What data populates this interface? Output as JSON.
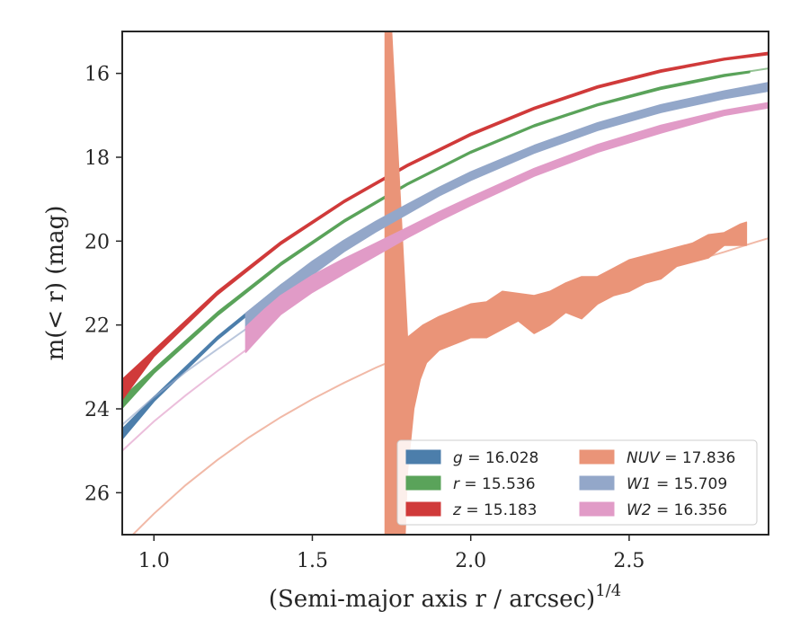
{
  "chart_data": {
    "type": "line",
    "xlabel": "(Semi-major axis r / arcsec)",
    "xlabel_exponent": "1/4",
    "ylabel": "m(< r) (mag)",
    "xlim": [
      0.9,
      2.94
    ],
    "ylim": [
      27.0,
      15.0
    ],
    "y_inverted": true,
    "grid": false,
    "legend_position": "lower-right",
    "legend_columns": 2,
    "xticks": [
      1.0,
      1.5,
      2.0,
      2.5
    ],
    "xtick_labels": [
      "1.0",
      "1.5",
      "2.0",
      "2.5"
    ],
    "yticks": [
      16,
      18,
      20,
      22,
      24,
      26
    ],
    "ytick_labels": [
      "16",
      "18",
      "20",
      "22",
      "24",
      "26"
    ],
    "series": [
      {
        "name": "g = 16.028",
        "band": "g",
        "value": "16.028",
        "color": "#4c7eab",
        "lower": [
          [
            0.9,
            24.72
          ],
          [
            1.0,
            23.82
          ],
          [
            1.2,
            22.35
          ],
          [
            1.4,
            21.12
          ],
          [
            1.6,
            20.05
          ],
          [
            1.8,
            19.18
          ],
          [
            2.0,
            18.42
          ],
          [
            2.2,
            17.78
          ],
          [
            2.4,
            17.27
          ],
          [
            2.6,
            16.88
          ],
          [
            2.78,
            16.6
          ],
          [
            2.86,
            16.5
          ]
        ],
        "upper": [
          [
            0.9,
            24.48
          ],
          [
            1.0,
            23.72
          ],
          [
            1.2,
            22.28
          ],
          [
            1.4,
            21.05
          ],
          [
            1.6,
            20.0
          ],
          [
            1.8,
            19.13
          ],
          [
            2.0,
            18.38
          ],
          [
            2.2,
            17.74
          ],
          [
            2.4,
            17.22
          ],
          [
            2.6,
            16.82
          ],
          [
            2.78,
            16.55
          ],
          [
            2.86,
            16.46
          ]
        ],
        "faint": []
      },
      {
        "name": "r = 15.536",
        "band": "r",
        "value": "15.536",
        "color": "#5aa35a",
        "lower": [
          [
            0.9,
            23.98
          ],
          [
            1.0,
            23.15
          ],
          [
            1.2,
            21.78
          ],
          [
            1.4,
            20.58
          ],
          [
            1.6,
            19.55
          ],
          [
            1.8,
            18.66
          ],
          [
            2.0,
            17.9
          ],
          [
            2.2,
            17.27
          ],
          [
            2.4,
            16.77
          ],
          [
            2.6,
            16.38
          ],
          [
            2.8,
            16.07
          ],
          [
            2.88,
            15.98
          ]
        ],
        "upper": [
          [
            0.9,
            23.74
          ],
          [
            1.0,
            23.05
          ],
          [
            1.2,
            21.7
          ],
          [
            1.4,
            20.52
          ],
          [
            1.6,
            19.5
          ],
          [
            1.8,
            18.62
          ],
          [
            2.0,
            17.86
          ],
          [
            2.2,
            17.23
          ],
          [
            2.4,
            16.73
          ],
          [
            2.6,
            16.33
          ],
          [
            2.8,
            16.03
          ],
          [
            2.88,
            15.95
          ]
        ],
        "faint": [
          [
            2.88,
            15.95
          ],
          [
            2.94,
            15.88
          ]
        ]
      },
      {
        "name": "z = 15.183",
        "band": "z",
        "value": "15.183",
        "color": "#d03a3a",
        "lower": [
          [
            0.9,
            23.78
          ],
          [
            1.0,
            22.75
          ],
          [
            1.2,
            21.28
          ],
          [
            1.4,
            20.08
          ],
          [
            1.6,
            19.08
          ],
          [
            1.8,
            18.22
          ],
          [
            2.0,
            17.48
          ],
          [
            2.2,
            16.86
          ],
          [
            2.4,
            16.35
          ],
          [
            2.6,
            15.97
          ],
          [
            2.8,
            15.68
          ],
          [
            2.94,
            15.55
          ]
        ],
        "upper": [
          [
            0.9,
            23.3
          ],
          [
            1.0,
            22.6
          ],
          [
            1.2,
            21.2
          ],
          [
            1.4,
            20.02
          ],
          [
            1.6,
            19.03
          ],
          [
            1.8,
            18.17
          ],
          [
            2.0,
            17.43
          ],
          [
            2.2,
            16.81
          ],
          [
            2.4,
            16.3
          ],
          [
            2.6,
            15.92
          ],
          [
            2.8,
            15.64
          ],
          [
            2.94,
            15.5
          ]
        ],
        "faint": []
      },
      {
        "name": "NUV = 17.836",
        "band": "NUV",
        "value": "17.836",
        "color": "#ea9478",
        "lower": [
          [
            1.73,
            27.5
          ],
          [
            1.79,
            27.5
          ],
          [
            1.8,
            25.5
          ],
          [
            1.82,
            24.0
          ],
          [
            1.84,
            23.3
          ],
          [
            1.86,
            22.9
          ],
          [
            1.9,
            22.6
          ],
          [
            1.95,
            22.45
          ],
          [
            2.0,
            22.3
          ],
          [
            2.05,
            22.3
          ],
          [
            2.1,
            22.1
          ],
          [
            2.15,
            21.9
          ],
          [
            2.2,
            22.2
          ],
          [
            2.25,
            22.0
          ],
          [
            2.3,
            21.7
          ],
          [
            2.35,
            21.85
          ],
          [
            2.4,
            21.5
          ],
          [
            2.45,
            21.3
          ],
          [
            2.5,
            21.2
          ],
          [
            2.55,
            21.0
          ],
          [
            2.6,
            20.9
          ],
          [
            2.65,
            20.6
          ],
          [
            2.7,
            20.5
          ],
          [
            2.75,
            20.4
          ],
          [
            2.8,
            20.1
          ],
          [
            2.85,
            20.1
          ],
          [
            2.87,
            20.1
          ]
        ],
        "upper": [
          [
            1.73,
            15.0
          ],
          [
            1.75,
            15.0
          ],
          [
            1.8,
            22.3
          ],
          [
            1.85,
            22.0
          ],
          [
            1.9,
            21.8
          ],
          [
            1.95,
            21.65
          ],
          [
            2.0,
            21.5
          ],
          [
            2.05,
            21.45
          ],
          [
            2.1,
            21.2
          ],
          [
            2.15,
            21.25
          ],
          [
            2.2,
            21.3
          ],
          [
            2.25,
            21.2
          ],
          [
            2.3,
            21.0
          ],
          [
            2.35,
            20.85
          ],
          [
            2.4,
            20.85
          ],
          [
            2.45,
            20.65
          ],
          [
            2.5,
            20.45
          ],
          [
            2.55,
            20.35
          ],
          [
            2.6,
            20.25
          ],
          [
            2.65,
            20.15
          ],
          [
            2.7,
            20.05
          ],
          [
            2.75,
            19.85
          ],
          [
            2.8,
            19.8
          ],
          [
            2.85,
            19.6
          ],
          [
            2.87,
            19.55
          ]
        ],
        "faint": [
          [
            0.9,
            27.25
          ],
          [
            1.0,
            26.5
          ],
          [
            1.1,
            25.82
          ],
          [
            1.2,
            25.22
          ],
          [
            1.3,
            24.68
          ],
          [
            1.4,
            24.2
          ],
          [
            1.5,
            23.77
          ],
          [
            1.6,
            23.38
          ],
          [
            1.7,
            23.02
          ],
          [
            1.8,
            22.7
          ],
          [
            1.9,
            22.4
          ],
          [
            2.0,
            22.12
          ],
          [
            2.1,
            21.85
          ],
          [
            2.2,
            21.6
          ],
          [
            2.3,
            21.37
          ],
          [
            2.4,
            21.14
          ],
          [
            2.5,
            20.92
          ],
          [
            2.6,
            20.7
          ],
          [
            2.7,
            20.48
          ],
          [
            2.8,
            20.26
          ],
          [
            2.9,
            20.02
          ],
          [
            2.94,
            19.93
          ]
        ]
      },
      {
        "name": "W1 = 15.709",
        "band": "W1",
        "value": "15.709",
        "color": "#93a7c9",
        "lower": [
          [
            1.29,
            22.1
          ],
          [
            1.35,
            21.72
          ],
          [
            1.4,
            21.4
          ],
          [
            1.5,
            20.8
          ],
          [
            1.6,
            20.25
          ],
          [
            1.7,
            19.78
          ],
          [
            1.8,
            19.35
          ],
          [
            1.9,
            18.92
          ],
          [
            2.0,
            18.55
          ],
          [
            2.2,
            17.9
          ],
          [
            2.4,
            17.36
          ],
          [
            2.6,
            16.93
          ],
          [
            2.8,
            16.6
          ],
          [
            2.94,
            16.42
          ]
        ],
        "upper": [
          [
            1.29,
            21.72
          ],
          [
            1.35,
            21.36
          ],
          [
            1.4,
            21.05
          ],
          [
            1.5,
            20.48
          ],
          [
            1.6,
            19.98
          ],
          [
            1.7,
            19.53
          ],
          [
            1.8,
            19.12
          ],
          [
            1.9,
            18.72
          ],
          [
            2.0,
            18.35
          ],
          [
            2.2,
            17.72
          ],
          [
            2.4,
            17.18
          ],
          [
            2.6,
            16.75
          ],
          [
            2.8,
            16.42
          ],
          [
            2.94,
            16.22
          ]
        ],
        "faint": [
          [
            0.9,
            24.38
          ],
          [
            1.0,
            23.72
          ],
          [
            1.1,
            23.12
          ],
          [
            1.2,
            22.58
          ],
          [
            1.29,
            22.1
          ]
        ]
      },
      {
        "name": "W2 = 16.356",
        "band": "W2",
        "value": "16.356",
        "color": "#e19bc7",
        "lower": [
          [
            1.29,
            22.65
          ],
          [
            1.35,
            22.15
          ],
          [
            1.4,
            21.75
          ],
          [
            1.5,
            21.22
          ],
          [
            1.6,
            20.78
          ],
          [
            1.7,
            20.35
          ],
          [
            1.8,
            19.92
          ],
          [
            1.9,
            19.52
          ],
          [
            2.0,
            19.15
          ],
          [
            2.2,
            18.45
          ],
          [
            2.4,
            17.88
          ],
          [
            2.6,
            17.42
          ],
          [
            2.8,
            17.0
          ],
          [
            2.94,
            16.82
          ]
        ],
        "upper": [
          [
            1.29,
            22.05
          ],
          [
            1.35,
            21.62
          ],
          [
            1.4,
            21.3
          ],
          [
            1.5,
            20.82
          ],
          [
            1.6,
            20.42
          ],
          [
            1.7,
            20.05
          ],
          [
            1.8,
            19.68
          ],
          [
            1.9,
            19.3
          ],
          [
            2.0,
            18.95
          ],
          [
            2.2,
            18.27
          ],
          [
            2.4,
            17.7
          ],
          [
            2.6,
            17.24
          ],
          [
            2.8,
            16.88
          ],
          [
            2.94,
            16.7
          ]
        ],
        "faint": [
          [
            0.9,
            25.0
          ],
          [
            1.0,
            24.3
          ],
          [
            1.1,
            23.68
          ],
          [
            1.2,
            23.1
          ],
          [
            1.29,
            22.6
          ]
        ]
      }
    ]
  }
}
